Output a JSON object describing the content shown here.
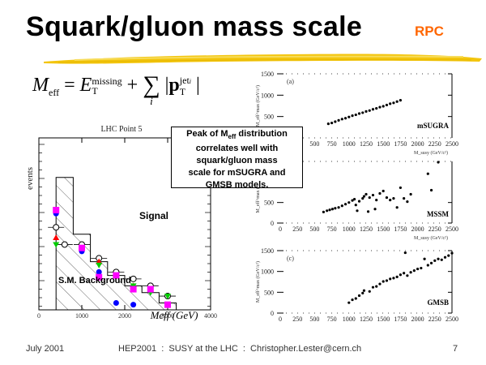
{
  "slide": {
    "title": "Squark/gluon mass scale",
    "badge": "RPC",
    "badge_color": "#ff6600",
    "underline_color": "#f2c200",
    "formula": {
      "lhs": "M",
      "lhs_sub": "eff",
      "equals": "=",
      "term1": "E",
      "term1_sub": "T",
      "term1_sup": "missing",
      "plus": "+",
      "sum": "∑",
      "sum_index": "i",
      "term2": "p",
      "term2_sub": "T",
      "term2_sup": "jet",
      "term2_sup_sub": "i"
    },
    "callout": {
      "line1_pre": "Peak of M",
      "line1_sub": "eff",
      "line1_post": " distribution",
      "line2": "correlates well with",
      "line3": "squark/gluon mass",
      "line4": "scale for mSUGRA and",
      "line5": "GMSB models."
    },
    "footer": {
      "date": "July 2001",
      "center": "HEP2001  :  SUSY at the LHC  :  Christopher.Lester@cern.ch",
      "page": "7"
    }
  },
  "chart_data": [
    {
      "type": "histogram",
      "title": "LHC Point 5",
      "xlabel": "M_eff (GeV)",
      "ylabel": "events",
      "xlim": [
        0,
        4000
      ],
      "x_ticks": [
        "0",
        "1000",
        "2000",
        "3000",
        "4000"
      ],
      "yscale": "log",
      "annotations": [
        "Signal",
        "S.M. Background"
      ],
      "series": [
        {
          "name": "Signal",
          "marker": "open-circle",
          "color": "#000000",
          "x": [
            400,
            600,
            1000,
            1400,
            1800,
            2200,
            2600,
            3000
          ],
          "y": [
            0.52,
            0.62,
            0.62,
            0.7,
            0.78,
            0.82,
            0.86,
            0.92
          ]
        },
        {
          "name": "Red triangle",
          "marker": "triangle-up",
          "color": "#ff0000",
          "x": [
            400,
            1400,
            2200
          ],
          "y": [
            0.58,
            0.72,
            0.86
          ]
        },
        {
          "name": "Green triangle",
          "marker": "triangle-down",
          "color": "#00cc00",
          "x": [
            400,
            1400,
            1800,
            2200,
            2600,
            3000
          ],
          "y": [
            0.62,
            0.74,
            0.8,
            0.86,
            0.9,
            0.92
          ]
        },
        {
          "name": "Blue circle",
          "marker": "circle",
          "color": "#0000ff",
          "x": [
            400,
            1000,
            1400,
            1800,
            2200
          ],
          "y": [
            0.44,
            0.66,
            0.78,
            0.96,
            0.97
          ]
        },
        {
          "name": "Magenta square",
          "marker": "square",
          "color": "#ff00ff",
          "x": [
            400,
            1000,
            1400,
            1800,
            2200,
            2600,
            3000
          ],
          "y": [
            0.42,
            0.64,
            0.81,
            0.8,
            0.88,
            0.88,
            0.97
          ]
        }
      ]
    },
    {
      "type": "scatter",
      "panel": "(a)",
      "model": "mSUGRA",
      "xlabel": "M_susy (GeV/c²)",
      "ylabel": "M_eff^max (GeV/c²)",
      "xlim": [
        0,
        2500
      ],
      "ylim": [
        0,
        1500
      ],
      "x_ticks": [
        "500",
        "750",
        "1000",
        "1250",
        "1500",
        "1750",
        "2000",
        "2250",
        "2500"
      ],
      "y_ticks": [
        "500",
        "1000",
        "1500"
      ],
      "points": [
        [
          700,
          330
        ],
        [
          750,
          350
        ],
        [
          800,
          380
        ],
        [
          850,
          410
        ],
        [
          900,
          440
        ],
        [
          950,
          460
        ],
        [
          1000,
          490
        ],
        [
          1050,
          520
        ],
        [
          1100,
          540
        ],
        [
          1150,
          570
        ],
        [
          1200,
          590
        ],
        [
          1250,
          620
        ],
        [
          1300,
          640
        ],
        [
          1350,
          670
        ],
        [
          1400,
          690
        ],
        [
          1450,
          720
        ],
        [
          1500,
          740
        ],
        [
          1550,
          770
        ],
        [
          1600,
          800
        ],
        [
          1650,
          820
        ],
        [
          1700,
          850
        ],
        [
          1750,
          880
        ]
      ]
    },
    {
      "type": "scatter",
      "panel": "(b)",
      "model": "MSSM",
      "xlabel": "M_susy (GeV/c²)",
      "ylabel": "M_eff^max (GeV/c²)",
      "xlim": [
        0,
        2500
      ],
      "ylim": [
        0,
        1500
      ],
      "x_ticks": [
        "0",
        "250",
        "500",
        "750",
        "1000",
        "1250",
        "1500",
        "1750",
        "2000",
        "2250",
        "2500"
      ],
      "y_ticks": [
        "0",
        "500"
      ],
      "points": [
        [
          630,
          270
        ],
        [
          680,
          300
        ],
        [
          720,
          320
        ],
        [
          760,
          340
        ],
        [
          800,
          360
        ],
        [
          850,
          380
        ],
        [
          900,
          420
        ],
        [
          950,
          460
        ],
        [
          1000,
          500
        ],
        [
          1050,
          550
        ],
        [
          1080,
          580
        ],
        [
          1100,
          440
        ],
        [
          1120,
          300
        ],
        [
          1150,
          530
        ],
        [
          1200,
          600
        ],
        [
          1220,
          650
        ],
        [
          1250,
          700
        ],
        [
          1280,
          280
        ],
        [
          1300,
          620
        ],
        [
          1350,
          680
        ],
        [
          1380,
          340
        ],
        [
          1400,
          560
        ],
        [
          1450,
          720
        ],
        [
          1500,
          780
        ],
        [
          1550,
          620
        ],
        [
          1600,
          560
        ],
        [
          1650,
          600
        ],
        [
          1700,
          380
        ],
        [
          1750,
          860
        ],
        [
          1800,
          600
        ],
        [
          1850,
          520
        ],
        [
          1900,
          700
        ],
        [
          2150,
          1200
        ],
        [
          2200,
          800
        ],
        [
          2300,
          1480
        ]
      ]
    },
    {
      "type": "scatter",
      "panel": "(c)",
      "model": "GMSB",
      "xlabel": "M_susy (GeV/c²)",
      "ylabel": "M_eff^max (GeV/c²)",
      "xlim": [
        0,
        2500
      ],
      "ylim": [
        0,
        1500
      ],
      "x_ticks": [
        "0",
        "250",
        "500",
        "750",
        "1000",
        "1250",
        "1500",
        "1750",
        "2000",
        "2250",
        "2500"
      ],
      "y_ticks": [
        "0",
        "500",
        "1000",
        "1500"
      ],
      "points": [
        [
          1000,
          250
        ],
        [
          1050,
          320
        ],
        [
          1100,
          350
        ],
        [
          1150,
          420
        ],
        [
          1200,
          480
        ],
        [
          1220,
          540
        ],
        [
          1300,
          520
        ],
        [
          1350,
          620
        ],
        [
          1400,
          640
        ],
        [
          1450,
          700
        ],
        [
          1500,
          760
        ],
        [
          1550,
          780
        ],
        [
          1600,
          820
        ],
        [
          1650,
          840
        ],
        [
          1700,
          870
        ],
        [
          1750,
          920
        ],
        [
          1800,
          960
        ],
        [
          1850,
          900
        ],
        [
          1900,
          980
        ],
        [
          1950,
          1020
        ],
        [
          2000,
          1060
        ],
        [
          2050,
          1080
        ],
        [
          2100,
          1300
        ],
        [
          2150,
          1150
        ],
        [
          2200,
          1200
        ],
        [
          2250,
          1260
        ],
        [
          2300,
          1300
        ],
        [
          2350,
          1280
        ],
        [
          2400,
          1340
        ],
        [
          2450,
          1380
        ],
        [
          2500,
          1440
        ],
        [
          1820,
          1450
        ]
      ]
    }
  ]
}
